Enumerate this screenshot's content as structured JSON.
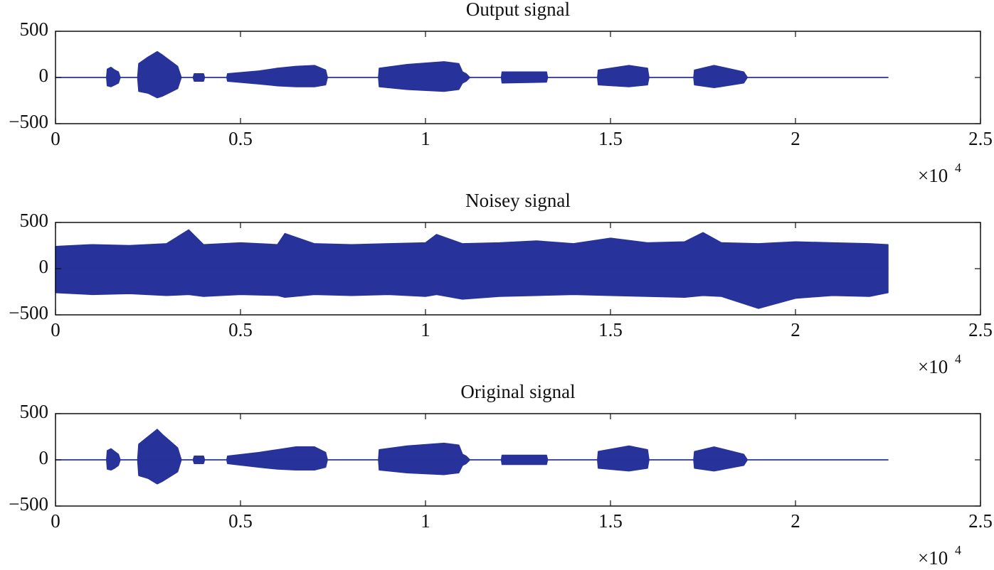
{
  "chart_data": [
    {
      "type": "area",
      "title": "Output signal",
      "x": [
        0,
        0.138,
        0.14,
        0.15,
        0.16,
        0.17,
        0.175,
        0.222,
        0.225,
        0.25,
        0.275,
        0.29,
        0.31,
        0.33,
        0.34,
        0.372,
        0.375,
        0.4,
        0.403,
        0.463,
        0.465,
        0.55,
        0.6,
        0.65,
        0.7,
        0.73,
        0.735,
        0.873,
        0.875,
        0.95,
        1.05,
        1.09,
        1.1,
        1.11,
        1.12,
        1.205,
        1.207,
        1.327,
        1.33,
        1.465,
        1.467,
        1.55,
        1.6,
        1.604,
        1.725,
        1.727,
        1.78,
        1.86,
        1.87,
        2.25
      ],
      "series": [
        {
          "color": "#27339a",
          "values": [
            0,
            0,
            90,
            110,
            80,
            60,
            0,
            0,
            150,
            220,
            280,
            240,
            180,
            120,
            0,
            0,
            40,
            40,
            0,
            0,
            40,
            70,
            100,
            120,
            130,
            80,
            0,
            0,
            100,
            140,
            170,
            150,
            60,
            40,
            0,
            0,
            60,
            60,
            0,
            0,
            80,
            130,
            100,
            0,
            0,
            80,
            130,
            60,
            0,
            0
          ]
        },
        {
          "color": "#27339a",
          "values": [
            0,
            0,
            -90,
            -100,
            -80,
            -60,
            0,
            0,
            -150,
            -170,
            -220,
            -200,
            -160,
            -120,
            0,
            0,
            -40,
            -40,
            0,
            0,
            -40,
            -70,
            -90,
            -100,
            -100,
            -80,
            0,
            0,
            -100,
            -130,
            -150,
            -130,
            -60,
            -40,
            0,
            0,
            -60,
            -50,
            0,
            0,
            -80,
            -100,
            -80,
            0,
            0,
            -80,
            -110,
            -60,
            0,
            0
          ]
        }
      ],
      "xlim": [
        0,
        2.5
      ],
      "xticks": [
        0,
        0.5,
        1,
        1.5,
        2,
        2.5
      ],
      "x_exponent_base": "×10",
      "x_exponent": "4",
      "ylim": [
        -500,
        500
      ],
      "yticks": [
        {
          "value": -500,
          "label": "−500"
        },
        0,
        500
      ]
    },
    {
      "type": "area",
      "title": "Noisey signal",
      "x": [
        0,
        0.1,
        0.2,
        0.3,
        0.36,
        0.4,
        0.5,
        0.6,
        0.62,
        0.7,
        0.8,
        0.9,
        1.0,
        1.03,
        1.1,
        1.2,
        1.3,
        1.4,
        1.5,
        1.6,
        1.7,
        1.75,
        1.8,
        1.9,
        2.0,
        2.1,
        2.2,
        2.25
      ],
      "series": [
        {
          "color": "#27339a",
          "values": [
            240,
            260,
            250,
            270,
            420,
            260,
            280,
            260,
            380,
            270,
            260,
            270,
            280,
            370,
            270,
            280,
            300,
            270,
            330,
            280,
            290,
            390,
            280,
            270,
            290,
            280,
            270,
            260
          ]
        },
        {
          "color": "#27339a",
          "values": [
            -260,
            -280,
            -270,
            -290,
            -280,
            -300,
            -280,
            -290,
            -310,
            -280,
            -290,
            -280,
            -300,
            -280,
            -330,
            -300,
            -290,
            -280,
            -290,
            -300,
            -310,
            -290,
            -300,
            -430,
            -320,
            -290,
            -300,
            -260
          ]
        }
      ],
      "xlim": [
        0,
        2.5
      ],
      "xticks": [
        0,
        0.5,
        1,
        1.5,
        2,
        2.5
      ],
      "x_exponent_base": "×10",
      "x_exponent": "4",
      "ylim": [
        -500,
        500
      ],
      "yticks": [
        {
          "value": -500,
          "label": "−500"
        },
        0,
        500
      ]
    },
    {
      "type": "area",
      "title": "Original signal",
      "x": [
        0,
        0.138,
        0.14,
        0.15,
        0.16,
        0.17,
        0.175,
        0.222,
        0.225,
        0.25,
        0.275,
        0.29,
        0.31,
        0.33,
        0.34,
        0.372,
        0.375,
        0.4,
        0.403,
        0.463,
        0.465,
        0.55,
        0.6,
        0.65,
        0.7,
        0.73,
        0.735,
        0.873,
        0.875,
        0.95,
        1.05,
        1.09,
        1.1,
        1.11,
        1.12,
        1.205,
        1.207,
        1.327,
        1.33,
        1.465,
        1.467,
        1.55,
        1.6,
        1.604,
        1.725,
        1.727,
        1.78,
        1.86,
        1.87,
        2.25
      ],
      "series": [
        {
          "color": "#27339a",
          "values": [
            0,
            0,
            100,
            120,
            90,
            60,
            0,
            0,
            170,
            250,
            330,
            270,
            200,
            130,
            0,
            0,
            40,
            40,
            0,
            0,
            40,
            80,
            110,
            140,
            140,
            80,
            0,
            0,
            110,
            150,
            180,
            160,
            60,
            40,
            0,
            0,
            50,
            50,
            0,
            0,
            90,
            150,
            110,
            0,
            0,
            90,
            140,
            60,
            0,
            0
          ]
        },
        {
          "color": "#27339a",
          "values": [
            0,
            0,
            -100,
            -110,
            -90,
            -60,
            0,
            0,
            -170,
            -200,
            -260,
            -230,
            -180,
            -130,
            0,
            0,
            -40,
            -40,
            0,
            0,
            -40,
            -80,
            -100,
            -110,
            -110,
            -80,
            0,
            0,
            -110,
            -140,
            -160,
            -140,
            -60,
            -40,
            0,
            0,
            -50,
            -50,
            0,
            0,
            -90,
            -120,
            -90,
            0,
            0,
            -90,
            -120,
            -60,
            0,
            0
          ]
        }
      ],
      "xlim": [
        0,
        2.5
      ],
      "xticks": [
        0,
        0.5,
        1,
        1.5,
        2,
        2.5
      ],
      "x_exponent_base": "×10",
      "x_exponent": "4",
      "ylim": [
        -500,
        500
      ],
      "yticks": [
        {
          "value": -500,
          "label": "−500"
        },
        0,
        500
      ]
    }
  ]
}
